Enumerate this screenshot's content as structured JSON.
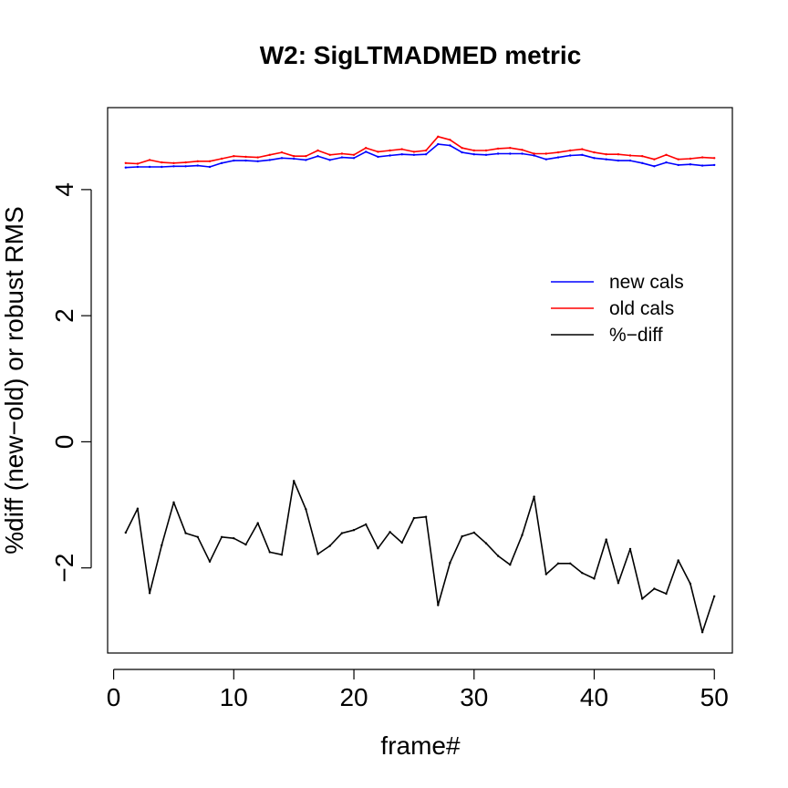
{
  "chart_data": {
    "type": "line",
    "title": "W2: SigLTMADMED metric",
    "xlabel": "frame#",
    "ylabel": "%diff (new−old) or robust RMS",
    "xlim": [
      -0.5,
      51.5
    ],
    "ylim": [
      -3.35,
      5.3
    ],
    "xticks": [
      0,
      10,
      20,
      30,
      40,
      50
    ],
    "xtick_labels": [
      "0",
      "10",
      "20",
      "30",
      "40",
      "50"
    ],
    "yticks": [
      -2,
      0,
      2,
      4
    ],
    "ytick_labels": [
      "−2",
      "0",
      "2",
      "4"
    ],
    "grid": false,
    "legend_position": "right",
    "x": [
      1,
      2,
      3,
      4,
      5,
      6,
      7,
      8,
      9,
      10,
      11,
      12,
      13,
      14,
      15,
      16,
      17,
      18,
      19,
      20,
      21,
      22,
      23,
      24,
      25,
      26,
      27,
      28,
      29,
      30,
      31,
      32,
      33,
      34,
      35,
      36,
      37,
      38,
      39,
      40,
      41,
      42,
      43,
      44,
      45,
      46,
      47,
      48,
      49,
      50
    ],
    "series": [
      {
        "name": "new cals",
        "color": "#0000ff",
        "values": [
          4.35,
          4.36,
          4.36,
          4.36,
          4.37,
          4.37,
          4.38,
          4.36,
          4.42,
          4.46,
          4.46,
          4.45,
          4.47,
          4.5,
          4.49,
          4.47,
          4.53,
          4.47,
          4.51,
          4.5,
          4.6,
          4.52,
          4.54,
          4.56,
          4.55,
          4.56,
          4.72,
          4.7,
          4.59,
          4.56,
          4.55,
          4.57,
          4.57,
          4.57,
          4.54,
          4.48,
          4.51,
          4.54,
          4.55,
          4.5,
          4.48,
          4.46,
          4.46,
          4.42,
          4.37,
          4.43,
          4.39,
          4.4,
          4.38,
          4.39
        ]
      },
      {
        "name": "old cals",
        "color": "#ff0000",
        "values": [
          4.42,
          4.41,
          4.47,
          4.43,
          4.42,
          4.43,
          4.45,
          4.45,
          4.49,
          4.53,
          4.52,
          4.51,
          4.55,
          4.59,
          4.53,
          4.53,
          4.62,
          4.55,
          4.57,
          4.55,
          4.66,
          4.6,
          4.62,
          4.64,
          4.6,
          4.62,
          4.84,
          4.79,
          4.66,
          4.62,
          4.62,
          4.65,
          4.66,
          4.63,
          4.57,
          4.57,
          4.59,
          4.62,
          4.64,
          4.59,
          4.56,
          4.56,
          4.54,
          4.53,
          4.48,
          4.55,
          4.48,
          4.49,
          4.51,
          4.5
        ]
      },
      {
        "name": "%−diff",
        "color": "#000000",
        "values": [
          -1.44,
          -1.06,
          -2.4,
          -1.64,
          -0.96,
          -1.45,
          -1.51,
          -1.9,
          -1.51,
          -1.53,
          -1.63,
          -1.29,
          -1.75,
          -1.79,
          -0.62,
          -1.07,
          -1.78,
          -1.65,
          -1.45,
          -1.4,
          -1.31,
          -1.69,
          -1.43,
          -1.6,
          -1.21,
          -1.19,
          -2.59,
          -1.92,
          -1.5,
          -1.44,
          -1.61,
          -1.81,
          -1.95,
          -1.48,
          -0.87,
          -2.1,
          -1.93,
          -1.93,
          -2.08,
          -2.17,
          -1.55,
          -2.24,
          -1.7,
          -2.49,
          -2.33,
          -2.41,
          -1.88,
          -2.25,
          -3.02,
          -2.45
        ]
      }
    ]
  }
}
